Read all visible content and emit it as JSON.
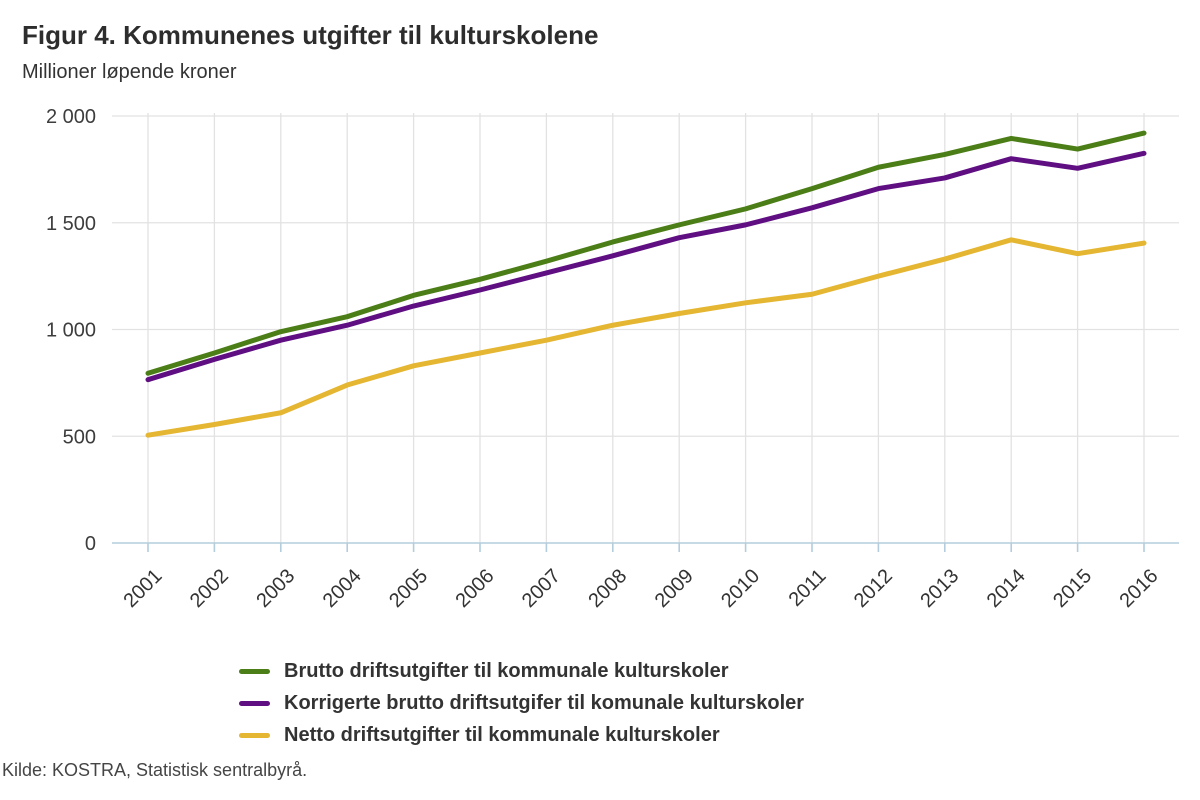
{
  "header": {
    "title": "Figur 4. Kommunenes utgifter til kulturskolene",
    "subtitle": "Millioner løpende kroner"
  },
  "chart_data": {
    "type": "line",
    "categories": [
      "2001",
      "2002",
      "2003",
      "2004",
      "2005",
      "2006",
      "2007",
      "2008",
      "2009",
      "2010",
      "2011",
      "2012",
      "2013",
      "2014",
      "2015",
      "2016"
    ],
    "series": [
      {
        "name": "Brutto driftsutgifter til kommunale kulturskoler",
        "color": "#4c7e17",
        "values": [
          795,
          890,
          990,
          1060,
          1160,
          1235,
          1320,
          1410,
          1490,
          1565,
          1660,
          1760,
          1820,
          1895,
          1845,
          1920
        ]
      },
      {
        "name": "Korrigerte brutto driftsutgifer til komunale kulturskoler",
        "color": "#5f0f82",
        "values": [
          765,
          860,
          950,
          1020,
          1110,
          1185,
          1265,
          1345,
          1430,
          1490,
          1570,
          1660,
          1710,
          1800,
          1755,
          1825
        ]
      },
      {
        "name": "Netto driftsutgifter til kommunale kulturskoler",
        "color": "#e5b632",
        "values": [
          505,
          555,
          610,
          740,
          830,
          890,
          950,
          1020,
          1075,
          1125,
          1165,
          1250,
          1330,
          1420,
          1355,
          1405
        ]
      }
    ],
    "title": "Figur 4. Kommunenes utgifter til kulturskolene",
    "subtitle": "Millioner løpende kroner",
    "xlabel": "",
    "ylabel": "Millioner løpende kroner",
    "ylim": [
      0,
      2000
    ],
    "yticks": [
      0,
      500,
      1000,
      1500,
      2000
    ],
    "ytick_labels": [
      "0",
      "500",
      "1 000",
      "1 500",
      "2 000"
    ],
    "grid": true,
    "legend_position": "bottom"
  },
  "footer": {
    "source": "Kilde: KOSTRA, Statistisk sentralbyrå."
  },
  "colors": {
    "gridline": "#e2e2e2",
    "axis": "#b3cddd",
    "text": "#333333"
  }
}
